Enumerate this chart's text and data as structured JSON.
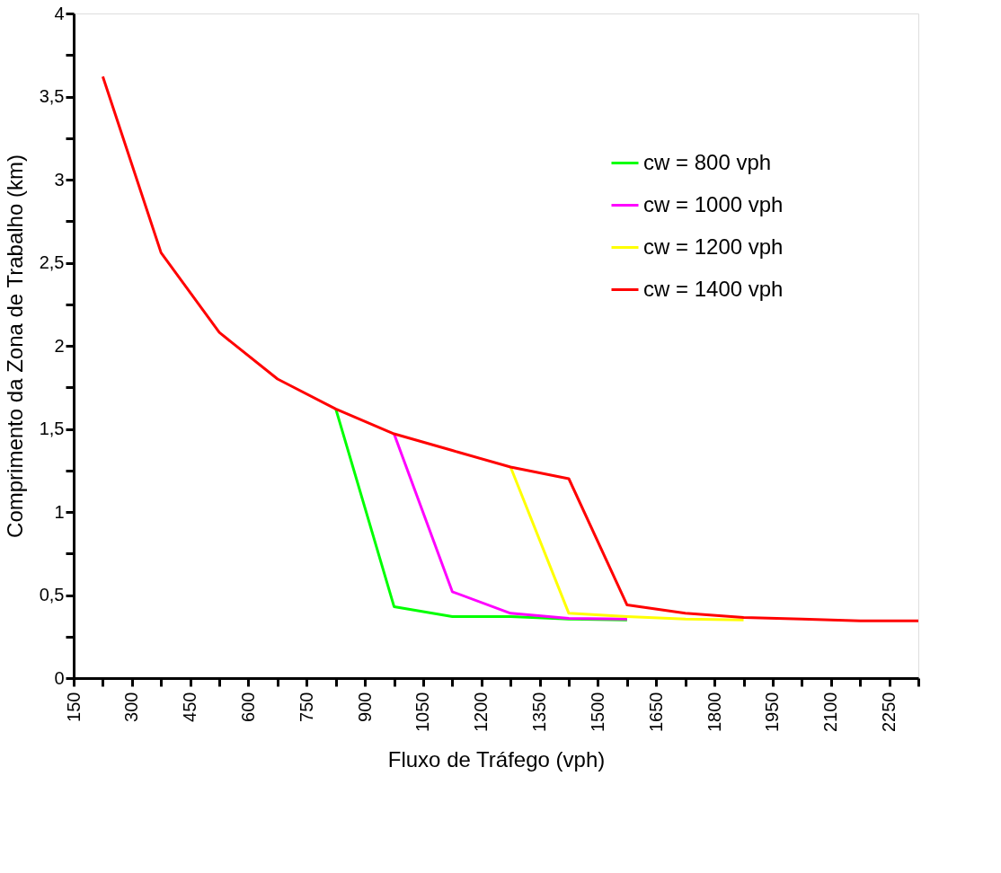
{
  "chart_data": {
    "type": "line",
    "xlabel": "Fluxo de Tráfego (vph)",
    "ylabel": "Comprimento da Zona de Trabalho (km)",
    "xlim": [
      150,
      2325
    ],
    "ylim": [
      0,
      4
    ],
    "xticks": [
      150,
      {
        "value": 225,
        "label": null
      },
      300,
      {
        "value": 375,
        "label": null
      },
      450,
      {
        "value": 525,
        "label": null
      },
      600,
      {
        "value": 675,
        "label": null
      },
      750,
      {
        "value": 825,
        "label": null
      },
      900,
      {
        "value": 975,
        "label": null
      },
      1050,
      {
        "value": 1125,
        "label": null
      },
      1200,
      {
        "value": 1275,
        "label": null
      },
      1350,
      {
        "value": 1425,
        "label": null
      },
      1500,
      {
        "value": 1575,
        "label": null
      },
      1650,
      {
        "value": 1725,
        "label": null
      },
      1800,
      {
        "value": 1875,
        "label": null
      },
      1950,
      {
        "value": 2025,
        "label": null
      },
      2100,
      {
        "value": 2175,
        "label": null
      },
      2250,
      {
        "value": 2325,
        "label": null
      }
    ],
    "yticks": [
      0,
      {
        "value": 0.25,
        "label": null
      },
      {
        "value": 0.5,
        "label": "0,5"
      },
      {
        "value": 0.75,
        "label": null
      },
      1,
      {
        "value": 1.25,
        "label": null
      },
      {
        "value": 1.5,
        "label": "1,5"
      },
      {
        "value": 1.75,
        "label": null
      },
      2,
      {
        "value": 2.25,
        "label": null
      },
      {
        "value": 2.5,
        "label": "2,5"
      },
      {
        "value": 2.75,
        "label": null
      },
      3,
      {
        "value": 3.25,
        "label": null
      },
      {
        "value": 3.5,
        "label": "3,5"
      },
      {
        "value": 3.75,
        "label": null
      },
      4
    ],
    "grid": false,
    "legend": "top right",
    "marker": "none",
    "line_style": "solid",
    "series": [
      {
        "name": "cw = 800 vph",
        "color": "#00ff00",
        "x": [
          825,
          975,
          1125,
          1275,
          1425,
          1575
        ],
        "values": [
          1.62,
          0.43,
          0.37,
          0.37,
          0.355,
          0.35
        ]
      },
      {
        "name": "cw = 1000 vph",
        "color": "#ff00ff",
        "x": [
          975,
          1125,
          1275,
          1425,
          1575
        ],
        "values": [
          1.47,
          0.52,
          0.39,
          0.36,
          0.355
        ]
      },
      {
        "name": "cw = 1200 vph",
        "color": "#ffff00",
        "x": [
          1275,
          1425,
          1575,
          1725,
          1875
        ],
        "values": [
          1.27,
          0.39,
          0.37,
          0.355,
          0.35
        ]
      },
      {
        "name": "cw = 1400 vph",
        "color": "#ff0000",
        "x": [
          225,
          375,
          525,
          675,
          825,
          975,
          1125,
          1275,
          1425,
          1575,
          1725,
          1875,
          2025,
          2175,
          2325
        ],
        "values": [
          3.62,
          2.56,
          2.08,
          1.8,
          1.62,
          1.47,
          1.37,
          1.27,
          1.2,
          0.44,
          0.39,
          0.365,
          0.355,
          0.345,
          0.345
        ]
      }
    ]
  }
}
